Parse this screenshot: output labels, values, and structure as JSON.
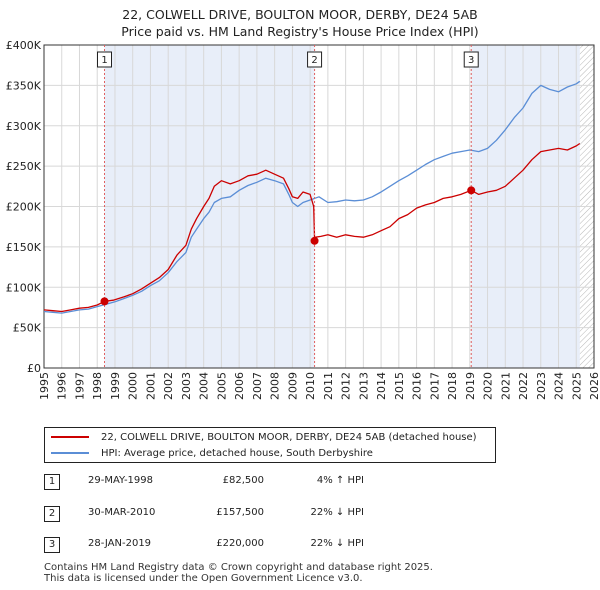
{
  "title": {
    "line1": "22, COLWELL DRIVE, BOULTON MOOR, DERBY, DE24 5AB",
    "line2": "Price paid vs. HM Land Registry's House Price Index (HPI)"
  },
  "colors": {
    "property": "#cc0000",
    "hpi": "#5b8ed6",
    "shade": "#e8eef9",
    "marker_line": "#e06060",
    "hatch": "#b7b7b7",
    "grid": "#d8d8d8"
  },
  "chart_data": {
    "type": "line",
    "ylim": [
      0,
      400000
    ],
    "xlim": [
      1995,
      2026
    ],
    "y_ticks": [
      0,
      50000,
      100000,
      150000,
      200000,
      250000,
      300000,
      350000,
      400000
    ],
    "y_tick_labels": [
      "£0",
      "£50K",
      "£100K",
      "£150K",
      "£200K",
      "£250K",
      "£300K",
      "£350K",
      "£400K"
    ],
    "x_ticks": [
      1995,
      1996,
      1997,
      1998,
      1999,
      2000,
      2001,
      2002,
      2003,
      2004,
      2005,
      2006,
      2007,
      2008,
      2009,
      2010,
      2011,
      2012,
      2013,
      2014,
      2015,
      2016,
      2017,
      2018,
      2019,
      2020,
      2021,
      2022,
      2023,
      2024,
      2025,
      2026
    ],
    "x_tick_labels": [
      "1995",
      "1996",
      "1997",
      "1998",
      "1999",
      "2000",
      "2001",
      "2002",
      "2003",
      "2004",
      "2005",
      "2006",
      "2007",
      "2008",
      "2009",
      "2010",
      "2011",
      "2012",
      "2013",
      "2014",
      "2015",
      "2016",
      "2017",
      "2018",
      "2019",
      "2020",
      "2021",
      "2022",
      "2023",
      "2024",
      "2025",
      "2026"
    ],
    "shaded_periods": [
      [
        1998.41,
        2010.25
      ],
      [
        2019.08,
        2025.2
      ]
    ],
    "future_hatch_start": 2025.2,
    "series": [
      {
        "name": "22, COLWELL DRIVE, BOULTON MOOR, DERBY, DE24 5AB (detached house)",
        "x": [
          1995.0,
          1995.5,
          1996.0,
          1996.5,
          1997.0,
          1997.5,
          1998.0,
          1998.41,
          1998.9,
          1999.5,
          2000.0,
          2000.5,
          2001.0,
          2001.5,
          2002.0,
          2002.5,
          2003.0,
          2003.3,
          2003.6,
          2004.0,
          2004.3,
          2004.6,
          2005.0,
          2005.5,
          2006.0,
          2006.5,
          2007.0,
          2007.5,
          2008.0,
          2008.5,
          2008.8,
          2009.0,
          2009.3,
          2009.6,
          2010.0,
          2010.2,
          2010.25,
          2010.3,
          2010.6,
          2011.0,
          2011.5,
          2012.0,
          2012.5,
          2013.0,
          2013.5,
          2014.0,
          2014.5,
          2015.0,
          2015.5,
          2016.0,
          2016.5,
          2017.0,
          2017.5,
          2018.0,
          2018.5,
          2019.08,
          2019.5,
          2020.0,
          2020.5,
          2021.0,
          2021.5,
          2022.0,
          2022.5,
          2023.0,
          2023.5,
          2024.0,
          2024.5,
          2025.0,
          2025.2
        ],
        "values": [
          72000,
          71000,
          70000,
          72000,
          74000,
          75000,
          78000,
          82500,
          84000,
          88000,
          92000,
          98000,
          105000,
          112000,
          122000,
          140000,
          152000,
          172000,
          185000,
          200000,
          210000,
          225000,
          232000,
          228000,
          232000,
          238000,
          240000,
          245000,
          240000,
          235000,
          222000,
          212000,
          210000,
          218000,
          215000,
          200000,
          157500,
          162000,
          163000,
          165000,
          162000,
          165000,
          163000,
          162000,
          165000,
          170000,
          175000,
          185000,
          190000,
          198000,
          202000,
          205000,
          210000,
          212000,
          215000,
          220000,
          215000,
          218000,
          220000,
          225000,
          235000,
          245000,
          258000,
          268000,
          270000,
          272000,
          270000,
          275000,
          278000
        ]
      },
      {
        "name": "HPI: Average price, detached house, South Derbyshire",
        "x": [
          1995.0,
          1995.5,
          1996.0,
          1996.5,
          1997.0,
          1997.5,
          1998.0,
          1998.5,
          1999.0,
          1999.5,
          2000.0,
          2000.5,
          2001.0,
          2001.5,
          2002.0,
          2002.5,
          2003.0,
          2003.3,
          2003.6,
          2004.0,
          2004.3,
          2004.6,
          2005.0,
          2005.5,
          2006.0,
          2006.5,
          2007.0,
          2007.5,
          2008.0,
          2008.5,
          2008.8,
          2009.0,
          2009.3,
          2009.6,
          2010.0,
          2010.5,
          2011.0,
          2011.5,
          2012.0,
          2012.5,
          2013.0,
          2013.5,
          2014.0,
          2014.5,
          2015.0,
          2015.5,
          2016.0,
          2016.5,
          2017.0,
          2017.5,
          2018.0,
          2018.5,
          2019.0,
          2019.5,
          2020.0,
          2020.5,
          2021.0,
          2021.5,
          2022.0,
          2022.5,
          2023.0,
          2023.5,
          2024.0,
          2024.5,
          2025.0,
          2025.2
        ],
        "values": [
          70000,
          69000,
          68000,
          70000,
          72000,
          73000,
          76000,
          79000,
          82000,
          86000,
          90000,
          95000,
          102000,
          108000,
          118000,
          132000,
          143000,
          162000,
          172000,
          185000,
          193000,
          205000,
          210000,
          212000,
          220000,
          226000,
          230000,
          235000,
          232000,
          228000,
          215000,
          205000,
          200000,
          205000,
          208000,
          212000,
          205000,
          206000,
          208000,
          207000,
          208000,
          212000,
          218000,
          225000,
          232000,
          238000,
          245000,
          252000,
          258000,
          262000,
          266000,
          268000,
          270000,
          268000,
          272000,
          282000,
          295000,
          310000,
          322000,
          340000,
          350000,
          345000,
          342000,
          348000,
          352000,
          355000
        ]
      }
    ],
    "sale_markers": [
      {
        "label": "1",
        "x": 1998.41,
        "value": 82500
      },
      {
        "label": "2",
        "x": 2010.25,
        "value": 157500
      },
      {
        "label": "3",
        "x": 2019.08,
        "value": 220000
      }
    ]
  },
  "legend": {
    "property_label": "22, COLWELL DRIVE, BOULTON MOOR, DERBY, DE24 5AB (detached house)",
    "hpi_label": "HPI: Average price, detached house, South Derbyshire"
  },
  "sales": [
    {
      "num": "1",
      "date": "29-MAY-1998",
      "price": "£82,500",
      "hpi": "4% ↑ HPI"
    },
    {
      "num": "2",
      "date": "30-MAR-2010",
      "price": "£157,500",
      "hpi": "22% ↓ HPI"
    },
    {
      "num": "3",
      "date": "28-JAN-2019",
      "price": "£220,000",
      "hpi": "22% ↓ HPI"
    }
  ],
  "footer": {
    "line1": "Contains HM Land Registry data © Crown copyright and database right 2025.",
    "line2": "This data is licensed under the Open Government Licence v3.0."
  }
}
